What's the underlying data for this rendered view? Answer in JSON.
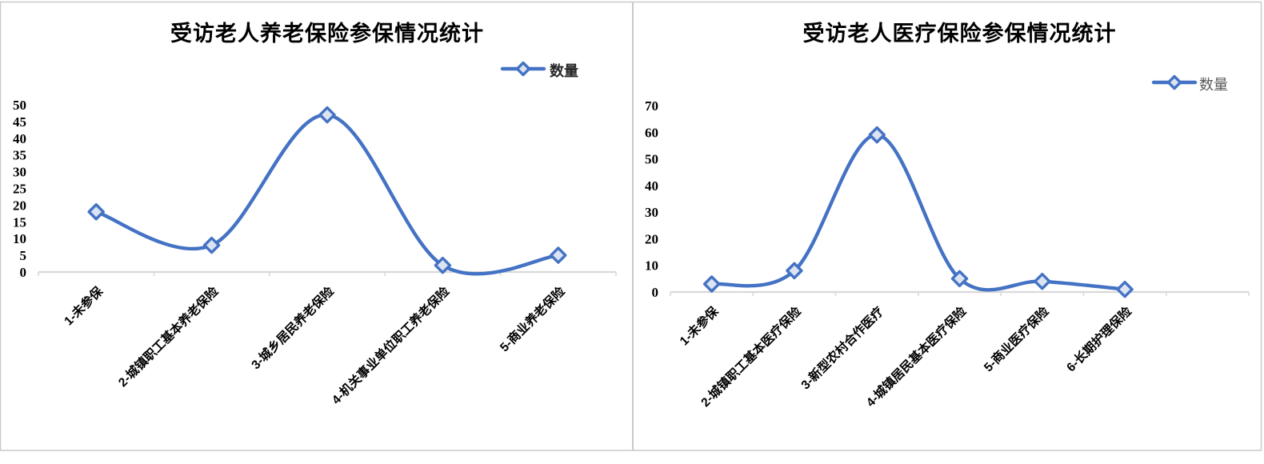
{
  "page": {
    "background": "#ffffff",
    "panel_border_color": "#c9c9c9"
  },
  "chart_data": [
    {
      "type": "line",
      "title": "受访老人养老保险参保情况统计",
      "legend_position": "top-right",
      "categories": [
        "1-未参保",
        "2-城镇职工基本养老保险",
        "3-城乡居民养老保险",
        "4-机关事业单位职工养老保险",
        "5-商业养老保险"
      ],
      "series": [
        {
          "name": "数量",
          "values": [
            18,
            8,
            47,
            2,
            5
          ]
        }
      ],
      "ylim": [
        0,
        50
      ],
      "ytick_step": 5,
      "ytick_labels": [
        "0",
        "5",
        "10",
        "15",
        "20",
        "25",
        "30",
        "35",
        "40",
        "45",
        "50"
      ],
      "x_slots": 5,
      "grid": false,
      "smooth": true,
      "marker": "diamond",
      "line_color": "#4472C4",
      "marker_fill": "#DCE4F2",
      "axis_color": "#D9D9D9",
      "legend_text_color": "#262626"
    },
    {
      "type": "line",
      "title": "受访老人医疗保险参保情况统计",
      "legend_position": "top-right",
      "categories": [
        "1-未参保",
        "2-城镇职工基本医疗保险",
        "3-新型农村合作医疗",
        "4-城镇居民基本医疗保险",
        "5-商业医疗保险",
        "6-长期护理保险"
      ],
      "series": [
        {
          "name": "数量",
          "values": [
            3,
            8,
            59,
            5,
            4,
            1
          ]
        }
      ],
      "ylim": [
        0,
        70
      ],
      "ytick_step": 10,
      "ytick_labels": [
        "0",
        "10",
        "20",
        "30",
        "40",
        "50",
        "60",
        "70"
      ],
      "x_slots": 7,
      "grid": false,
      "smooth": true,
      "marker": "diamond",
      "line_color": "#4472C4",
      "marker_fill": "#DCE4F2",
      "axis_color": "#D9D9D9",
      "legend_text_color": "#595959"
    }
  ]
}
